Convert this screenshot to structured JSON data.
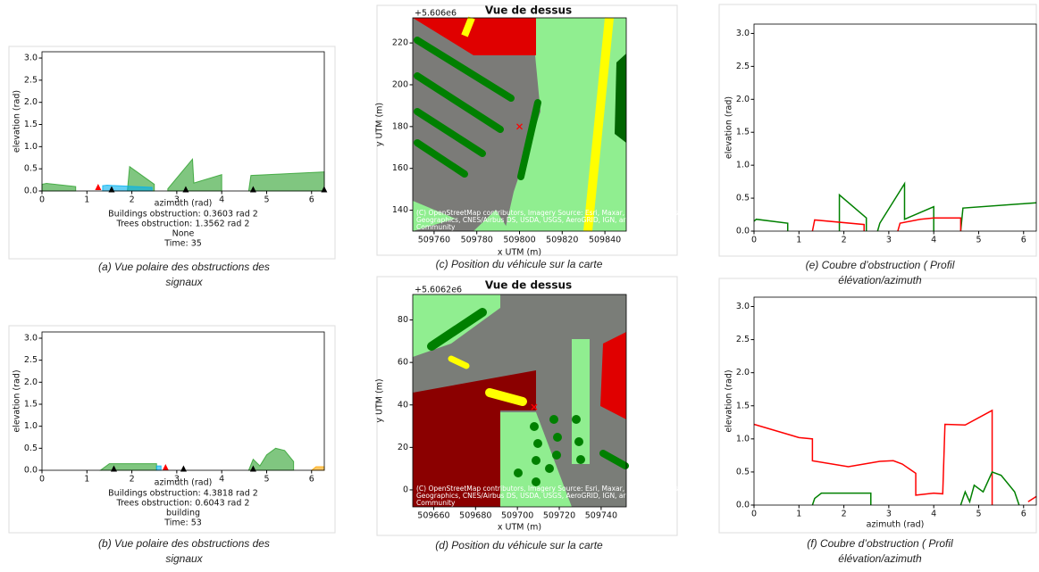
{
  "chart_data": [
    {
      "type": "area",
      "xlabel": "azimuth (rad)",
      "ylabel": "elevation (rad)",
      "xlim": [
        0,
        6.283
      ],
      "ylim": [
        0,
        3.1416
      ],
      "xticks": [
        0,
        1,
        2,
        3,
        4,
        5,
        6
      ],
      "yticks": [
        {
          "value": 0,
          "label": "0.0"
        },
        {
          "value": 0.5,
          "label": "0.5"
        },
        {
          "value": 1,
          "label": "1.0"
        },
        {
          "value": 1.5,
          "label": "1.5"
        },
        {
          "value": 2,
          "label": "2.0"
        },
        {
          "value": 2.5,
          "label": "2.5"
        },
        {
          "value": 3,
          "label": "3.0"
        }
      ],
      "series": [
        {
          "color": "#2ca02c",
          "x": [
            0,
            0.1,
            0.75,
            null,
            1.9,
            1.95,
            2.5,
            null,
            2.8,
            3.35,
            3.38,
            4.0,
            null,
            4.6,
            4.65,
            6.283
          ],
          "values": [
            0.15,
            0.17,
            0.1,
            null,
            0,
            0.55,
            0.15,
            null,
            0.05,
            0.72,
            0.18,
            0.37,
            null,
            0,
            0.35,
            0.43
          ]
        },
        {
          "color": "#00b0f0",
          "x": [
            1.35,
            1.45,
            2.45
          ],
          "values": [
            0.12,
            0.13,
            0.08
          ]
        }
      ],
      "markers": [
        {
          "color": "#ff0000",
          "x": [
            1.25
          ],
          "values": [
            0.08
          ]
        },
        {
          "color": "#000000",
          "x": [
            1.55,
            3.2,
            4.7,
            6.28
          ],
          "values": [
            0.03,
            0.03,
            0.03,
            0.03
          ]
        }
      ],
      "info": [
        "Buildings obstruction: 0.3603 rad 2",
        "Trees obstruction: 1.3562 rad 2",
        "None",
        "Time: 35"
      ],
      "caption": [
        "(a) Vue polaire des obstructions des",
        "signaux"
      ]
    },
    {
      "type": "area",
      "xlabel": "azimuth (rad)",
      "ylabel": "elevation (rad)",
      "xlim": [
        0,
        6.283
      ],
      "ylim": [
        0,
        3.1416
      ],
      "xticks": [
        0,
        1,
        2,
        3,
        4,
        5,
        6
      ],
      "yticks": [
        {
          "value": 0,
          "label": "0.0"
        },
        {
          "value": 0.5,
          "label": "0.5"
        },
        {
          "value": 1,
          "label": "1.0"
        },
        {
          "value": 1.5,
          "label": "1.5"
        },
        {
          "value": 2,
          "label": "2.0"
        },
        {
          "value": 2.5,
          "label": "2.5"
        },
        {
          "value": 3,
          "label": "3.0"
        }
      ],
      "series": [
        {
          "color": "#2ca02c",
          "x": [
            1.3,
            1.5,
            2.55,
            null,
            4.6,
            4.7,
            4.85,
            5.0,
            5.2,
            5.4,
            5.6
          ],
          "values": [
            0,
            0.15,
            0.15,
            null,
            0,
            0.25,
            0.1,
            0.35,
            0.5,
            0.45,
            0.2
          ]
        },
        {
          "color": "#00b0f0",
          "x": [
            2.55,
            2.65
          ],
          "values": [
            0.1,
            0.1
          ]
        },
        {
          "color": "#ffa500",
          "x": [
            6.0,
            6.1,
            6.283
          ],
          "values": [
            0,
            0.08,
            0.08
          ]
        }
      ],
      "markers": [
        {
          "color": "#000000",
          "x": [
            1.6,
            3.15,
            4.7
          ],
          "values": [
            0.03,
            0.03,
            0.03
          ]
        },
        {
          "color": "#ff0000",
          "x": [
            2.75
          ],
          "values": [
            0.06
          ]
        }
      ],
      "info": [
        "Buildings obstruction: 4.3818 rad 2",
        "Trees obstruction: 0.6043 rad 2",
        "building",
        "Time: 53"
      ],
      "caption": [
        "(b) Vue polaire des obstructions des",
        "signaux"
      ]
    },
    {
      "type": "map",
      "title": "Vue  de dessus",
      "offset_label": "+5.606e6",
      "xlabel": "x UTM (m)",
      "ylabel": "y UTM (m)",
      "xlim": [
        509750,
        509850
      ],
      "ylim": [
        130,
        232
      ],
      "xticks": [
        509760,
        509780,
        509800,
        509820,
        509840
      ],
      "yticks": [
        140,
        160,
        180,
        200,
        220
      ],
      "vehicle": {
        "color": "#ff0000",
        "x": 509800,
        "y": 180
      },
      "attribution": [
        "(C) OpenStreetMap contributors, Imagery Source: Esri, Maxar, GeoEye, Earthstar",
        "Geographics, CNES/Airbus DS, USDA, USGS, AeroGRID, IGN, and the GIS User",
        "Community"
      ],
      "caption": [
        "(c) Position du véhicule sur la carte"
      ]
    },
    {
      "type": "map",
      "title": "Vue  de dessus",
      "offset_label": "+5.6062e6",
      "xlabel": "x UTM (m)",
      "ylabel": "y UTM (m)",
      "xlim": [
        509650,
        509752
      ],
      "ylim": [
        -8,
        92
      ],
      "xticks": [
        509660,
        509680,
        509700,
        509720,
        509740
      ],
      "yticks": [
        0,
        20,
        40,
        60,
        80
      ],
      "vehicle": {
        "color": "#ff0000",
        "x": 509708,
        "y": 39
      },
      "attribution": [
        "(C) OpenStreetMap contributors, Imagery Source: Esri, Maxar, GeoEye, Earthstar",
        "Geographics, CNES/Airbus DS, USDA, USGS, AeroGRID, IGN, and the GIS User",
        "Community"
      ],
      "caption": [
        "(d) Position du véhicule sur la carte"
      ]
    },
    {
      "type": "line",
      "ylabel": "elevation (rad)",
      "xlim": [
        0,
        6.283
      ],
      "ylim": [
        0,
        3.1416
      ],
      "xticks": [
        0,
        1,
        2,
        3,
        4,
        5,
        6
      ],
      "yticks": [
        {
          "value": 0,
          "label": "0.0"
        },
        {
          "value": 0.5,
          "label": "0.5"
        },
        {
          "value": 1,
          "label": "1.0"
        },
        {
          "value": 1.5,
          "label": "1.5"
        },
        {
          "value": 2,
          "label": "2.0"
        },
        {
          "value": 2.5,
          "label": "2.5"
        },
        {
          "value": 3,
          "label": "3.0"
        }
      ],
      "series": [
        {
          "color": "#008000",
          "x": [
            0,
            0.05,
            0.75,
            0.75,
            null,
            1.9,
            1.9,
            2.5,
            2.5,
            null,
            2.75,
            2.8,
            3.35,
            3.35,
            4.0,
            4.0,
            null,
            4.6,
            4.65,
            6.283
          ],
          "values": [
            0.15,
            0.18,
            0.12,
            0,
            null,
            0,
            0.55,
            0.2,
            0,
            null,
            0,
            0.12,
            0.72,
            0.18,
            0.37,
            0,
            null,
            0,
            0.35,
            0.43
          ]
        },
        {
          "color": "#ff0000",
          "x": [
            1.3,
            1.35,
            2.45,
            2.45,
            null,
            3.2,
            3.25,
            3.7,
            4.0,
            4.6,
            4.6
          ],
          "values": [
            0,
            0.17,
            0.1,
            0,
            null,
            0,
            0.12,
            0.18,
            0.2,
            0.2,
            0
          ]
        }
      ],
      "caption": [
        "(e) Coubre d’obstruction ( Profil",
        "élévation/azimuth"
      ]
    },
    {
      "type": "line",
      "xlabel": "azimuth (rad)",
      "ylabel": "elevation (rad)",
      "xlim": [
        0,
        6.283
      ],
      "ylim": [
        0,
        3.1416
      ],
      "xticks": [
        0,
        1,
        2,
        3,
        4,
        5,
        6
      ],
      "yticks": [
        {
          "value": 0,
          "label": "0.0"
        },
        {
          "value": 0.5,
          "label": "0.5"
        },
        {
          "value": 1,
          "label": "1.0"
        },
        {
          "value": 1.5,
          "label": "1.5"
        },
        {
          "value": 2,
          "label": "2.0"
        },
        {
          "value": 2.5,
          "label": "2.5"
        },
        {
          "value": 3,
          "label": "3.0"
        }
      ],
      "series": [
        {
          "color": "#ff0000",
          "x": [
            0,
            1.0,
            1.3,
            1.3,
            2.1,
            2.8,
            3.1,
            3.3,
            3.6,
            3.6,
            4.0,
            4.2,
            4.25,
            4.7,
            5.3,
            5.3,
            null,
            6.1,
            6.283
          ],
          "values": [
            1.22,
            1.02,
            1.0,
            0.67,
            0.58,
            0.66,
            0.67,
            0.62,
            0.48,
            0.15,
            0.18,
            0.17,
            1.22,
            1.21,
            1.43,
            0,
            null,
            0.05,
            0.13
          ]
        },
        {
          "color": "#008000",
          "x": [
            1.3,
            1.35,
            1.5,
            2.6,
            2.6,
            null,
            4.6,
            4.7,
            4.8,
            4.9,
            5.1,
            5.3,
            5.5,
            5.8,
            5.9
          ],
          "values": [
            0,
            0.1,
            0.18,
            0.18,
            0,
            null,
            0,
            0.2,
            0.05,
            0.3,
            0.2,
            0.5,
            0.45,
            0.2,
            0
          ]
        }
      ],
      "caption": [
        "(f) Coubre d’obstruction ( Profil",
        "élévation/azimuth"
      ]
    }
  ]
}
